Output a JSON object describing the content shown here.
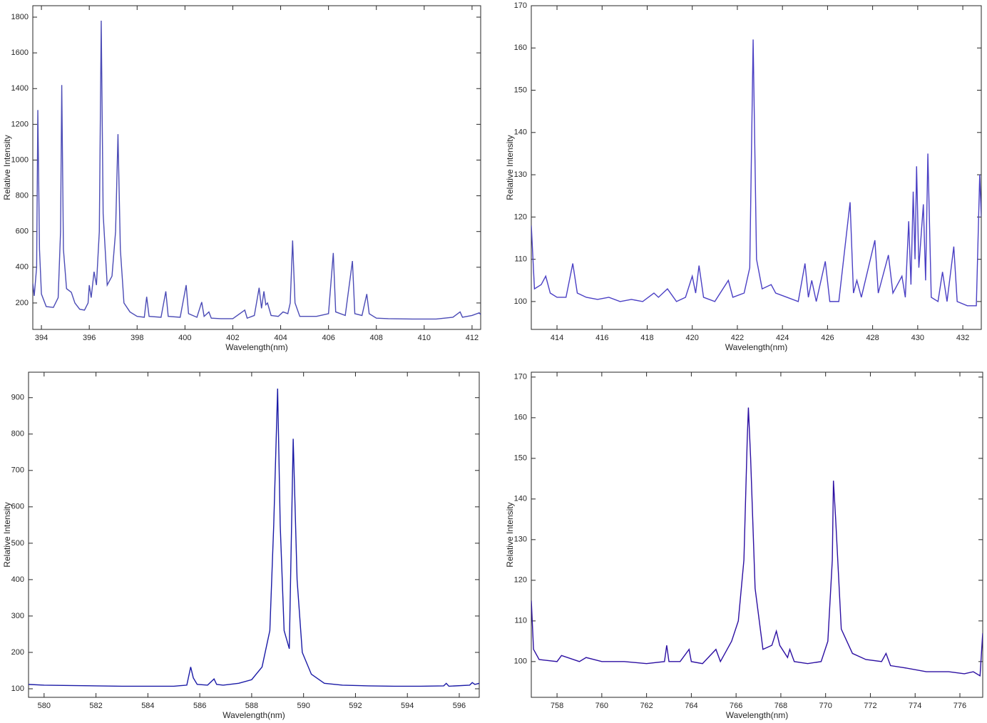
{
  "chart_data": [
    {
      "type": "line",
      "xlabel": "Wavelength(nm)",
      "ylabel": "Relative Intensity",
      "color": "#4b4bb6",
      "xlim": [
        393.64,
        412.36
      ],
      "ylim": [
        52,
        1864
      ],
      "xticks": [
        394,
        396,
        398,
        400,
        402,
        404,
        406,
        408,
        410,
        412
      ],
      "yticks": [
        200,
        400,
        600,
        800,
        1000,
        1200,
        1400,
        1600,
        1800
      ],
      "x": [
        393.64,
        393.7,
        393.8,
        393.85,
        393.92,
        394.0,
        394.2,
        394.5,
        394.7,
        394.8,
        394.85,
        394.92,
        395.05,
        395.25,
        395.4,
        395.6,
        395.8,
        395.95,
        396.0,
        396.08,
        396.2,
        396.3,
        396.42,
        396.5,
        396.58,
        396.75,
        396.95,
        397.1,
        397.2,
        397.3,
        397.45,
        397.7,
        398.0,
        398.3,
        398.4,
        398.5,
        399.0,
        399.2,
        399.3,
        399.8,
        400.05,
        400.15,
        400.5,
        400.7,
        400.8,
        401.0,
        401.1,
        401.5,
        402.0,
        402.5,
        402.6,
        402.9,
        403.1,
        403.2,
        403.3,
        403.38,
        403.45,
        403.6,
        403.9,
        404.1,
        404.3,
        404.4,
        404.5,
        404.6,
        404.8,
        405.5,
        406.0,
        406.2,
        406.3,
        406.7,
        407.0,
        407.1,
        407.4,
        407.6,
        407.7,
        408.0,
        408.5,
        409.5,
        410.5,
        411.2,
        411.5,
        411.6,
        412.0,
        412.3,
        412.36
      ],
      "values": [
        310,
        240,
        400,
        1280,
        500,
        250,
        180,
        175,
        230,
        600,
        1420,
        500,
        280,
        260,
        200,
        165,
        160,
        200,
        300,
        230,
        375,
        300,
        600,
        1780,
        700,
        300,
        350,
        600,
        1145,
        500,
        200,
        150,
        125,
        120,
        235,
        125,
        120,
        265,
        125,
        120,
        300,
        140,
        120,
        205,
        125,
        150,
        115,
        112,
        112,
        160,
        115,
        130,
        285,
        170,
        265,
        190,
        200,
        130,
        125,
        150,
        140,
        200,
        550,
        200,
        125,
        125,
        140,
        480,
        150,
        130,
        435,
        140,
        130,
        250,
        140,
        115,
        112,
        110,
        110,
        120,
        150,
        120,
        130,
        145,
        135
      ]
    },
    {
      "type": "line",
      "xlabel": "Wavelength(nm)",
      "ylabel": "Relative Intensity",
      "color": "#4a3fc4",
      "xlim": [
        412.86,
        432.82
      ],
      "ylim": [
        93.4,
        170
      ],
      "xticks": [
        414,
        416,
        418,
        420,
        422,
        424,
        426,
        428,
        430,
        432
      ],
      "yticks": [
        100,
        110,
        120,
        130,
        140,
        150,
        160,
        170
      ],
      "x": [
        412.86,
        413.0,
        413.3,
        413.5,
        413.7,
        414.0,
        414.4,
        414.7,
        414.9,
        415.3,
        415.8,
        416.3,
        416.8,
        417.3,
        417.8,
        418.3,
        418.5,
        418.9,
        419.3,
        419.7,
        420.0,
        420.15,
        420.3,
        420.5,
        421.0,
        421.6,
        421.8,
        422.3,
        422.55,
        422.7,
        422.85,
        423.1,
        423.5,
        423.7,
        424.2,
        424.7,
        425.0,
        425.15,
        425.3,
        425.5,
        425.9,
        426.1,
        426.5,
        427.0,
        427.15,
        427.3,
        427.5,
        428.1,
        428.25,
        428.4,
        428.7,
        428.9,
        429.3,
        429.45,
        429.6,
        429.7,
        429.8,
        429.88,
        429.95,
        430.05,
        430.25,
        430.35,
        430.45,
        430.6,
        430.9,
        431.1,
        431.3,
        431.6,
        431.75,
        432.2,
        432.6,
        432.75,
        432.82
      ],
      "values": [
        118,
        103,
        104,
        106,
        102,
        101,
        101,
        109,
        102,
        101,
        100.5,
        101,
        100,
        100.5,
        100,
        102,
        101,
        103,
        100,
        101,
        106,
        102,
        108.5,
        101,
        100,
        105,
        101,
        102,
        108,
        162,
        110,
        103,
        104,
        102,
        101,
        100,
        109,
        101,
        105,
        100,
        109.5,
        100,
        100,
        123.5,
        102,
        105,
        101,
        114.5,
        102,
        105,
        111,
        102,
        106,
        101,
        119,
        104,
        126,
        110,
        132,
        108,
        123,
        105,
        135,
        101,
        100,
        107,
        100,
        113,
        100,
        99,
        99,
        130,
        120
      ]
    },
    {
      "type": "line",
      "xlabel": "Wavelength(nm)",
      "ylabel": "Relative Intensity",
      "color": "#1a1aa6",
      "xlim": [
        579.4,
        596.77
      ],
      "ylim": [
        76.5,
        970
      ],
      "xticks": [
        580,
        582,
        584,
        586,
        588,
        590,
        592,
        594,
        596
      ],
      "yticks": [
        100,
        200,
        300,
        400,
        500,
        600,
        700,
        800,
        900
      ],
      "x": [
        579.4,
        580,
        581,
        582,
        583,
        584,
        585,
        585.5,
        585.65,
        585.75,
        585.9,
        586.3,
        586.55,
        586.65,
        586.9,
        587.5,
        588.0,
        588.4,
        588.7,
        588.85,
        589.0,
        589.1,
        589.25,
        589.45,
        589.6,
        589.75,
        589.95,
        590.3,
        590.8,
        591.5,
        592.5,
        593.5,
        594.5,
        595.4,
        595.5,
        595.6,
        596.4,
        596.5,
        596.6,
        596.77
      ],
      "values": [
        112,
        110,
        109,
        108,
        107,
        107,
        107,
        110,
        160,
        130,
        112,
        110,
        127,
        112,
        110,
        115,
        125,
        160,
        260,
        550,
        925,
        550,
        260,
        210,
        787,
        400,
        200,
        140,
        115,
        110,
        108,
        107,
        107,
        108,
        115,
        107,
        110,
        117,
        112,
        115
      ]
    },
    {
      "type": "line",
      "xlabel": "Wavelength(nm)",
      "ylabel": "Relative Intensity",
      "color": "#2c0fa2",
      "xlim": [
        756.85,
        777.02
      ],
      "ylim": [
        91.2,
        171.2
      ],
      "xticks": [
        758,
        760,
        762,
        764,
        766,
        768,
        770,
        772,
        774,
        776
      ],
      "yticks": [
        100,
        110,
        120,
        130,
        140,
        150,
        160,
        170
      ],
      "x": [
        756.85,
        756.95,
        757.2,
        758,
        758.2,
        759,
        759.3,
        760,
        761,
        762,
        762.8,
        762.9,
        763.0,
        763.5,
        763.9,
        764.0,
        764.5,
        765.1,
        765.3,
        765.5,
        765.8,
        766.1,
        766.35,
        766.5,
        766.55,
        766.65,
        766.85,
        767.2,
        767.6,
        767.8,
        767.95,
        768.3,
        768.4,
        768.6,
        769.2,
        769.8,
        770.1,
        770.3,
        770.35,
        770.45,
        770.7,
        771.2,
        771.8,
        772.5,
        772.7,
        772.9,
        773.5,
        774.5,
        775.5,
        776.2,
        776.6,
        776.9,
        777.02
      ],
      "values": [
        115,
        103,
        100.5,
        100,
        101.5,
        100,
        101,
        100,
        100,
        99.5,
        100,
        104,
        100,
        100,
        103,
        100,
        99.5,
        103,
        100,
        102,
        105,
        110,
        125,
        155,
        162.5,
        150,
        118,
        103,
        104,
        107.5,
        104,
        101,
        103,
        100,
        99.5,
        100,
        105,
        125,
        144.5,
        135,
        108,
        102,
        100.5,
        100,
        102,
        99,
        98.5,
        97.5,
        97.5,
        97,
        97.5,
        96.5,
        107
      ]
    }
  ]
}
